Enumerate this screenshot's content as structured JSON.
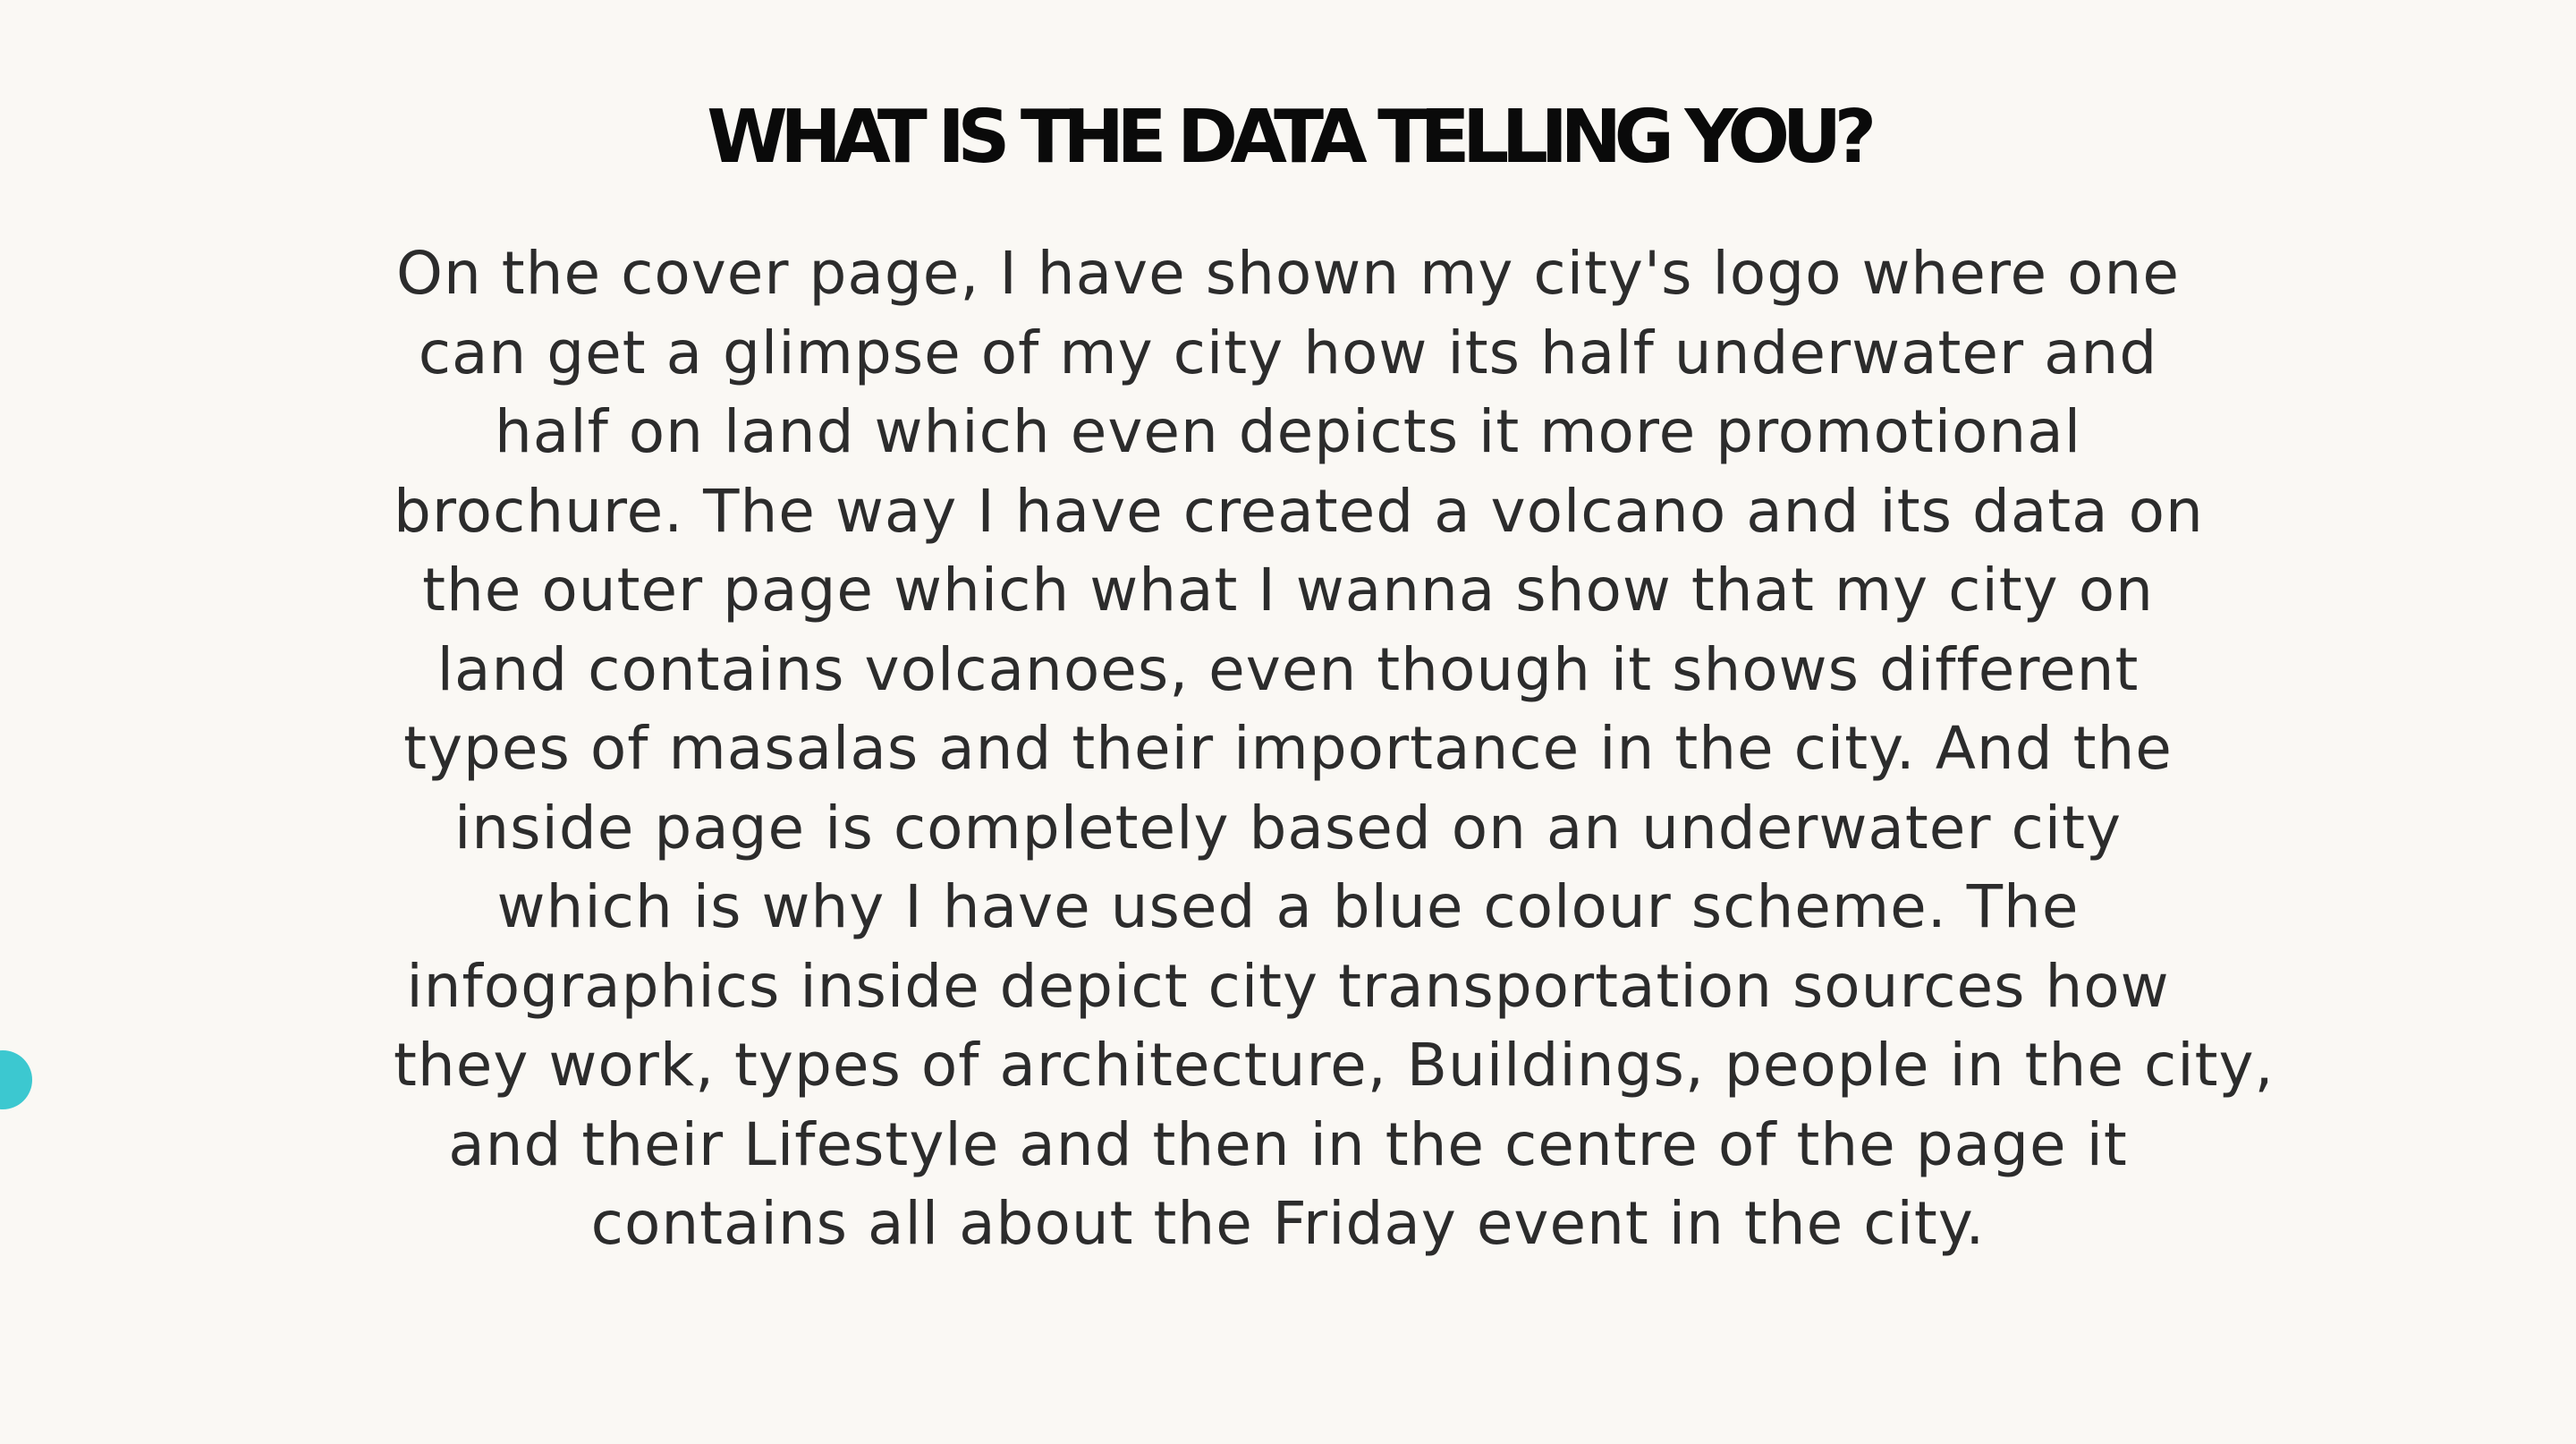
{
  "heading": "WHAT IS THE DATA TELLING YOU?",
  "body_lines": [
    "On the cover page, I have shown my city's logo where one",
    "can get a glimpse of my city how its half underwater and",
    "half on land which even depicts it more promotional",
    "brochure. The way I have created a volcano and its data on",
    "the outer page which what I wanna show that my city on",
    "land contains volcanoes, even though it shows different",
    "types of masalas and their importance in the city. And the",
    "inside page is completely based on an underwater city",
    "which is why I have used a blue colour scheme. The",
    "infographics inside depict city transportation sources how",
    "they work, types of architecture, Buildings, people in the city,",
    "and their Lifestyle and then in the centre of the page it",
    "contains all about the Friday event in the city."
  ],
  "colors": {
    "background": "#faf8f4",
    "heading": "#0a0a0a",
    "body": "#2c2c2c",
    "accent_dot": "#3cc8d0"
  }
}
